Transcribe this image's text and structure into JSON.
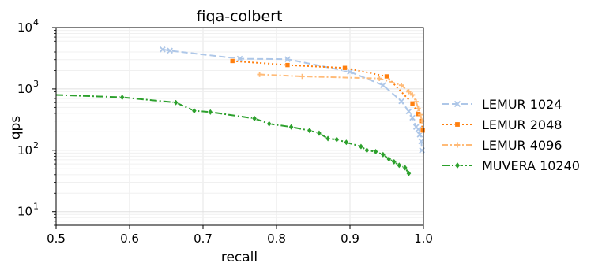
{
  "chart_data": {
    "type": "line",
    "title": "fiqa-colbert",
    "xlabel": "recall",
    "ylabel": "qps",
    "xlim": [
      0.5,
      1.0
    ],
    "ylim": [
      6,
      10000
    ],
    "yscale": "log",
    "grid": true,
    "legend_position": "right, outside plot",
    "xticks": [
      {
        "value": 0.5,
        "label": "0.5"
      },
      {
        "value": 0.6,
        "label": "0.6"
      },
      {
        "value": 0.7,
        "label": "0.7"
      },
      {
        "value": 0.8,
        "label": "0.8"
      },
      {
        "value": 0.9,
        "label": "0.9"
      },
      {
        "value": 1.0,
        "label": "1.0"
      }
    ],
    "yticks": [
      {
        "value": 10,
        "base": "10",
        "exp": "1"
      },
      {
        "value": 100,
        "base": "10",
        "exp": "2"
      },
      {
        "value": 1000,
        "base": "10",
        "exp": "3"
      },
      {
        "value": 10000,
        "base": "10",
        "exp": "4"
      }
    ],
    "series": [
      {
        "name": "LEMUR 1024",
        "color": "#aec7e8",
        "marker": "x",
        "dash": "8 4",
        "x": [
          0.645,
          0.655,
          0.75,
          0.815,
          0.9,
          0.945,
          0.97,
          0.98,
          0.985,
          0.99,
          0.993,
          0.995,
          0.997,
          0.998
        ],
        "y": [
          4400,
          4200,
          3100,
          3050,
          1900,
          1150,
          630,
          430,
          340,
          240,
          220,
          180,
          140,
          100
        ]
      },
      {
        "name": "LEMUR 2048",
        "color": "#ff7f0e",
        "marker": "square",
        "dash": "2 3",
        "x": [
          0.74,
          0.815,
          0.893,
          0.95,
          0.985,
          0.993,
          0.997,
          0.999
        ],
        "y": [
          2850,
          2450,
          2200,
          1600,
          580,
          390,
          300,
          210
        ]
      },
      {
        "name": "LEMUR 4096",
        "color": "#ffbb78",
        "marker": "plus",
        "dash": "7 3 2 3",
        "x": [
          0.777,
          0.835,
          0.94,
          0.97,
          0.98,
          0.985,
          0.99,
          0.993,
          0.996,
          0.998
        ],
        "y": [
          1720,
          1600,
          1480,
          1150,
          900,
          800,
          620,
          480,
          380,
          300
        ]
      },
      {
        "name": "MUVERA 10240",
        "color": "#2ca02c",
        "marker": "diamond",
        "dash": "9 3 2 3",
        "x": [
          0.59,
          0.663,
          0.688,
          0.71,
          0.77,
          0.79,
          0.82,
          0.845,
          0.858,
          0.87,
          0.882,
          0.895,
          0.915,
          0.923,
          0.935,
          0.945,
          0.953,
          0.96,
          0.967,
          0.975,
          0.98
        ],
        "y": [
          730,
          600,
          440,
          420,
          330,
          270,
          240,
          210,
          190,
          155,
          150,
          135,
          115,
          100,
          95,
          85,
          72,
          65,
          57,
          52,
          42
        ]
      }
    ],
    "series_start": {
      "name": "MUVERA 10240",
      "x": 0.5,
      "y": 800
    }
  }
}
